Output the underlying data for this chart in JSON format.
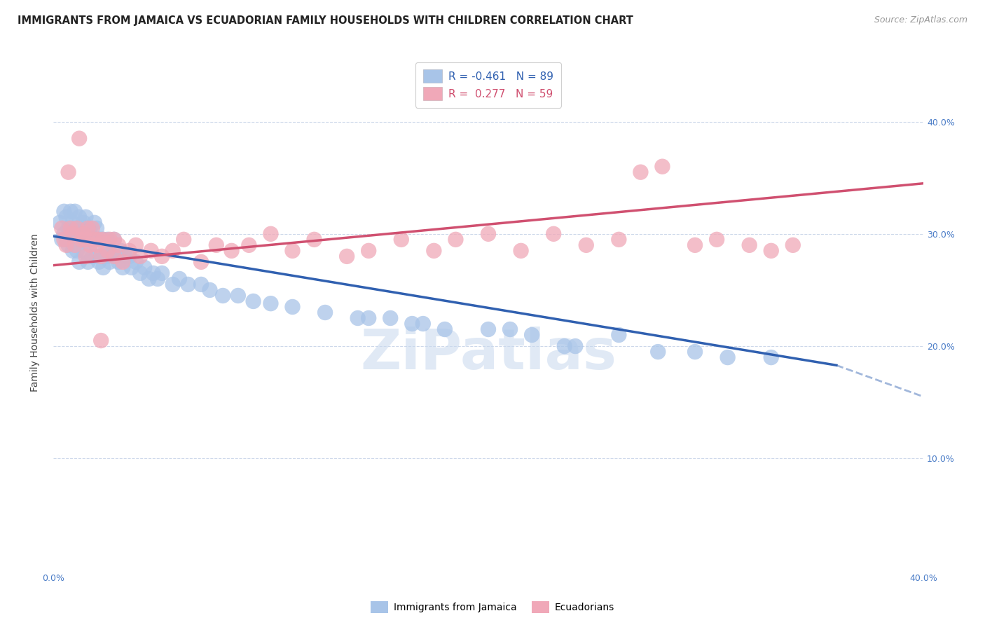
{
  "title": "IMMIGRANTS FROM JAMAICA VS ECUADORIAN FAMILY HOUSEHOLDS WITH CHILDREN CORRELATION CHART",
  "source": "Source: ZipAtlas.com",
  "ylabel": "Family Households with Children",
  "xlim": [
    0.0,
    0.4
  ],
  "ylim": [
    0.0,
    0.46
  ],
  "yticks": [
    0.1,
    0.2,
    0.3,
    0.4
  ],
  "ytick_labels": [
    "10.0%",
    "20.0%",
    "30.0%",
    "40.0%"
  ],
  "xticks": [
    0.0,
    0.05,
    0.1,
    0.15,
    0.2,
    0.25,
    0.3,
    0.35,
    0.4
  ],
  "xtick_labels": [
    "0.0%",
    "",
    "",
    "",
    "",
    "",
    "",
    "",
    "40.0%"
  ],
  "legend_blue_label": "R = -0.461   N = 89",
  "legend_pink_label": "R =  0.277   N = 59",
  "blue_color": "#a8c4e8",
  "pink_color": "#f0a8b8",
  "blue_line_color": "#3060b0",
  "pink_line_color": "#d05070",
  "blue_R": -0.461,
  "pink_R": 0.277,
  "title_fontsize": 10.5,
  "source_fontsize": 9,
  "axis_label_fontsize": 10,
  "tick_fontsize": 9,
  "legend_fontsize": 11,
  "watermark": "ZiPatlas",
  "background_color": "#ffffff",
  "grid_color": "#c8d4e8",
  "blue_scatter_x": [
    0.003,
    0.004,
    0.005,
    0.005,
    0.006,
    0.006,
    0.007,
    0.007,
    0.008,
    0.008,
    0.009,
    0.009,
    0.01,
    0.01,
    0.011,
    0.011,
    0.012,
    0.012,
    0.012,
    0.013,
    0.013,
    0.014,
    0.014,
    0.015,
    0.015,
    0.015,
    0.016,
    0.016,
    0.017,
    0.017,
    0.018,
    0.018,
    0.019,
    0.019,
    0.02,
    0.02,
    0.021,
    0.021,
    0.022,
    0.022,
    0.023,
    0.023,
    0.024,
    0.025,
    0.025,
    0.026,
    0.027,
    0.028,
    0.028,
    0.03,
    0.031,
    0.032,
    0.033,
    0.035,
    0.036,
    0.038,
    0.04,
    0.042,
    0.044,
    0.046,
    0.048,
    0.05,
    0.055,
    0.058,
    0.062,
    0.068,
    0.072,
    0.078,
    0.085,
    0.092,
    0.1,
    0.11,
    0.125,
    0.14,
    0.155,
    0.165,
    0.18,
    0.2,
    0.22,
    0.24,
    0.26,
    0.278,
    0.295,
    0.31,
    0.33,
    0.21,
    0.235,
    0.17,
    0.145
  ],
  "blue_scatter_y": [
    0.31,
    0.295,
    0.32,
    0.3,
    0.295,
    0.315,
    0.305,
    0.29,
    0.3,
    0.32,
    0.31,
    0.285,
    0.295,
    0.32,
    0.305,
    0.285,
    0.3,
    0.315,
    0.275,
    0.305,
    0.295,
    0.285,
    0.31,
    0.305,
    0.295,
    0.315,
    0.295,
    0.275,
    0.29,
    0.305,
    0.295,
    0.28,
    0.31,
    0.295,
    0.305,
    0.28,
    0.295,
    0.275,
    0.295,
    0.28,
    0.295,
    0.27,
    0.285,
    0.28,
    0.295,
    0.275,
    0.285,
    0.295,
    0.28,
    0.275,
    0.285,
    0.27,
    0.28,
    0.28,
    0.27,
    0.275,
    0.265,
    0.27,
    0.26,
    0.265,
    0.26,
    0.265,
    0.255,
    0.26,
    0.255,
    0.255,
    0.25,
    0.245,
    0.245,
    0.24,
    0.238,
    0.235,
    0.23,
    0.225,
    0.225,
    0.22,
    0.215,
    0.215,
    0.21,
    0.2,
    0.21,
    0.195,
    0.195,
    0.19,
    0.19,
    0.215,
    0.2,
    0.22,
    0.225
  ],
  "pink_scatter_x": [
    0.004,
    0.005,
    0.006,
    0.007,
    0.008,
    0.009,
    0.01,
    0.011,
    0.012,
    0.013,
    0.014,
    0.015,
    0.016,
    0.017,
    0.018,
    0.019,
    0.02,
    0.021,
    0.022,
    0.023,
    0.025,
    0.026,
    0.028,
    0.03,
    0.032,
    0.035,
    0.038,
    0.04,
    0.045,
    0.05,
    0.055,
    0.06,
    0.068,
    0.075,
    0.082,
    0.09,
    0.1,
    0.11,
    0.12,
    0.135,
    0.145,
    0.16,
    0.175,
    0.185,
    0.2,
    0.215,
    0.23,
    0.245,
    0.26,
    0.27,
    0.28,
    0.295,
    0.305,
    0.32,
    0.33,
    0.34,
    0.015,
    0.022,
    0.028
  ],
  "pink_scatter_y": [
    0.305,
    0.295,
    0.29,
    0.355,
    0.305,
    0.3,
    0.29,
    0.305,
    0.385,
    0.295,
    0.3,
    0.295,
    0.305,
    0.29,
    0.305,
    0.295,
    0.29,
    0.295,
    0.28,
    0.295,
    0.285,
    0.295,
    0.28,
    0.29,
    0.275,
    0.285,
    0.29,
    0.28,
    0.285,
    0.28,
    0.285,
    0.295,
    0.275,
    0.29,
    0.285,
    0.29,
    0.3,
    0.285,
    0.295,
    0.28,
    0.285,
    0.295,
    0.285,
    0.295,
    0.3,
    0.285,
    0.3,
    0.29,
    0.295,
    0.355,
    0.36,
    0.29,
    0.295,
    0.29,
    0.285,
    0.29,
    0.28,
    0.205,
    0.295
  ],
  "blue_line_start_x": 0.0,
  "blue_line_end_x": 0.36,
  "blue_line_dash_end_x": 0.4,
  "blue_line_start_y": 0.298,
  "blue_line_end_y": 0.183,
  "blue_line_dash_end_y": 0.155,
  "pink_line_start_x": 0.0,
  "pink_line_end_x": 0.4,
  "pink_line_start_y": 0.272,
  "pink_line_end_y": 0.345
}
